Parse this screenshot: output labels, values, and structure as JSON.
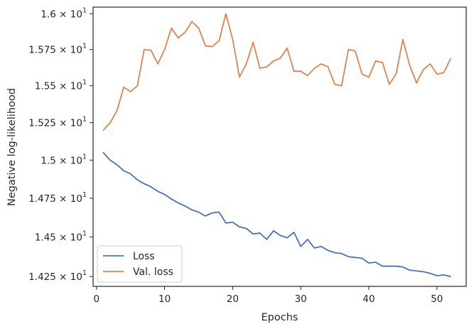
{
  "chart_data": {
    "type": "line",
    "title": "",
    "xlabel": "Epochs",
    "ylabel": "Negative log-likelihood",
    "xlim": [
      -0.5,
      54.3
    ],
    "ylim": [
      14.188,
      16.047
    ],
    "y_scale": "log",
    "grid": false,
    "legend_position": "lower-left",
    "x_ticks": [
      0,
      10,
      20,
      30,
      40,
      50
    ],
    "x_tick_labels": [
      "0",
      "10",
      "20",
      "30",
      "40",
      "50"
    ],
    "y_ticks": [
      14.25,
      14.5,
      14.75,
      15.0,
      15.25,
      15.5,
      15.75,
      16.0
    ],
    "y_tick_labels": [
      {
        "mantissa": "1.425",
        "base": "10",
        "exp": "1"
      },
      {
        "mantissa": "1.45",
        "base": "10",
        "exp": "1"
      },
      {
        "mantissa": "1.475",
        "base": "10",
        "exp": "1"
      },
      {
        "mantissa": "1.5",
        "base": "10",
        "exp": "1"
      },
      {
        "mantissa": "1.525",
        "base": "10",
        "exp": "1"
      },
      {
        "mantissa": "1.55",
        "base": "10",
        "exp": "1"
      },
      {
        "mantissa": "1.575",
        "base": "10",
        "exp": "1"
      },
      {
        "mantissa": "1.6",
        "base": "10",
        "exp": "1"
      }
    ],
    "x": [
      1,
      2,
      3,
      4,
      5,
      6,
      7,
      8,
      9,
      10,
      11,
      12,
      13,
      14,
      15,
      16,
      17,
      18,
      19,
      20,
      21,
      22,
      23,
      24,
      25,
      26,
      27,
      28,
      29,
      30,
      31,
      32,
      33,
      34,
      35,
      36,
      37,
      38,
      39,
      40,
      41,
      42,
      43,
      44,
      45,
      46,
      47,
      48,
      49,
      50,
      51,
      52
    ],
    "series": [
      {
        "name": "Loss",
        "color": "#4c72b0",
        "values": [
          15.05,
          15.0,
          14.97,
          14.93,
          14.91,
          14.87,
          14.845,
          14.825,
          14.795,
          14.775,
          14.745,
          14.72,
          14.7,
          14.675,
          14.66,
          14.635,
          14.655,
          14.66,
          14.59,
          14.595,
          14.565,
          14.555,
          14.52,
          14.525,
          14.485,
          14.54,
          14.51,
          14.495,
          14.53,
          14.44,
          14.485,
          14.43,
          14.44,
          14.415,
          14.4,
          14.395,
          14.375,
          14.37,
          14.365,
          14.335,
          14.34,
          14.315,
          14.315,
          14.315,
          14.31,
          14.29,
          14.285,
          14.28,
          14.27,
          14.255,
          14.26,
          14.25
        ]
      },
      {
        "name": "Val. loss",
        "color": "#dd8452",
        "values": [
          15.2,
          15.25,
          15.33,
          15.49,
          15.46,
          15.5,
          15.75,
          15.745,
          15.65,
          15.75,
          15.9,
          15.83,
          15.87,
          15.945,
          15.9,
          15.775,
          15.77,
          15.81,
          16.0,
          15.82,
          15.56,
          15.65,
          15.8,
          15.62,
          15.63,
          15.67,
          15.69,
          15.76,
          15.6,
          15.6,
          15.57,
          15.62,
          15.65,
          15.63,
          15.51,
          15.5,
          15.75,
          15.74,
          15.58,
          15.56,
          15.67,
          15.66,
          15.51,
          15.58,
          15.82,
          15.64,
          15.52,
          15.61,
          15.65,
          15.58,
          15.59,
          15.685
        ]
      }
    ]
  }
}
